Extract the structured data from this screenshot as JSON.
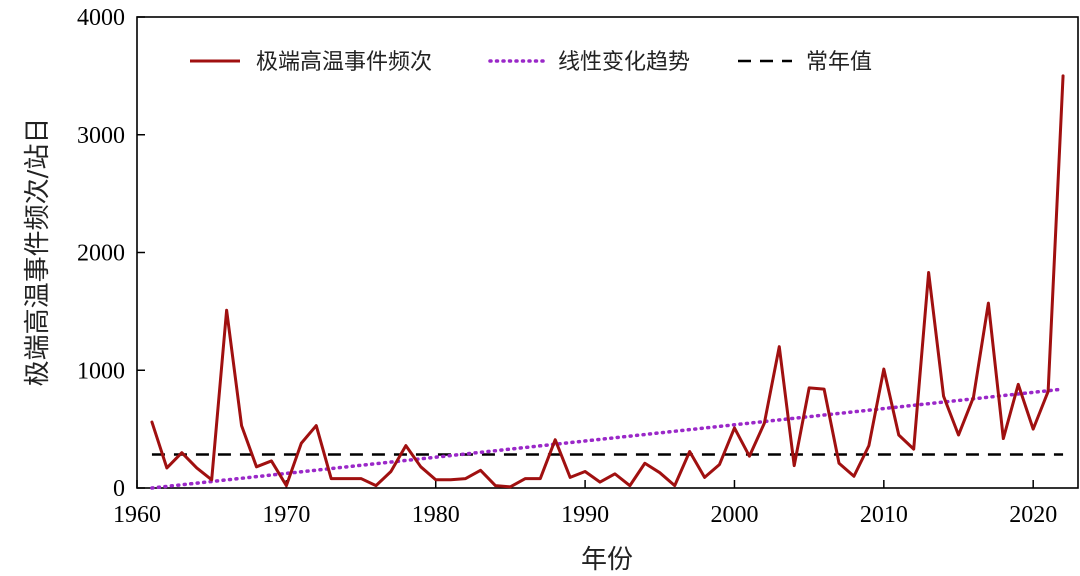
{
  "chart_data": {
    "type": "line",
    "xlabel": "年份",
    "ylabel": "极端高温事件频次/站日",
    "xlim": [
      1960,
      2023
    ],
    "ylim": [
      0,
      4000
    ],
    "xticks": [
      "1960",
      "1970",
      "1980",
      "1990",
      "2000",
      "2010",
      "2020"
    ],
    "yticks": [
      "0",
      "1000",
      "2000",
      "3000",
      "4000"
    ],
    "grid": false,
    "legend_position": "top",
    "x": [
      1961,
      1962,
      1963,
      1964,
      1965,
      1966,
      1967,
      1968,
      1969,
      1970,
      1971,
      1972,
      1973,
      1974,
      1975,
      1976,
      1977,
      1978,
      1979,
      1980,
      1981,
      1982,
      1983,
      1984,
      1985,
      1986,
      1987,
      1988,
      1989,
      1990,
      1991,
      1992,
      1993,
      1994,
      1995,
      1996,
      1997,
      1998,
      1999,
      2000,
      2001,
      2002,
      2003,
      2004,
      2005,
      2006,
      2007,
      2008,
      2009,
      2010,
      2011,
      2012,
      2013,
      2014,
      2015,
      2016,
      2017,
      2018,
      2019,
      2020,
      2021,
      2022
    ],
    "series": [
      {
        "name": "极端高温事件频次",
        "style": "solid",
        "color": "#a01010",
        "values": [
          560,
          170,
          300,
          170,
          70,
          1510,
          530,
          180,
          230,
          20,
          380,
          530,
          80,
          80,
          80,
          20,
          140,
          360,
          180,
          70,
          70,
          80,
          150,
          20,
          10,
          80,
          80,
          410,
          90,
          140,
          50,
          120,
          20,
          210,
          130,
          20,
          310,
          90,
          200,
          510,
          270,
          550,
          1200,
          190,
          850,
          840,
          210,
          100,
          360,
          1010,
          450,
          330,
          1830,
          780,
          450,
          770,
          1570,
          420,
          880,
          500,
          820,
          3500
        ]
      },
      {
        "name": "线性变化趋势",
        "style": "dotted",
        "color": "#9a28c8",
        "x": [
          1961,
          2022
        ],
        "values": [
          0,
          840
        ]
      },
      {
        "name": "常年值",
        "style": "dashed",
        "color": "#000000",
        "x": [
          1961,
          2022
        ],
        "values": [
          285,
          285
        ]
      }
    ]
  }
}
